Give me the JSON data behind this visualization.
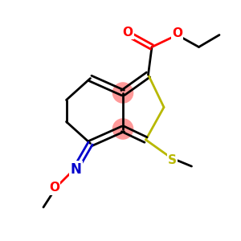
{
  "background_color": "#ffffff",
  "bond_color": "#000000",
  "S_color": "#b8b800",
  "O_color": "#ff0000",
  "N_color": "#0000cc",
  "highlight_color": "#ff9999",
  "line_width": 2.0,
  "figsize": [
    3.0,
    3.0
  ],
  "dpi": 100,
  "xlim": [
    0,
    10
  ],
  "ylim": [
    0,
    10
  ]
}
